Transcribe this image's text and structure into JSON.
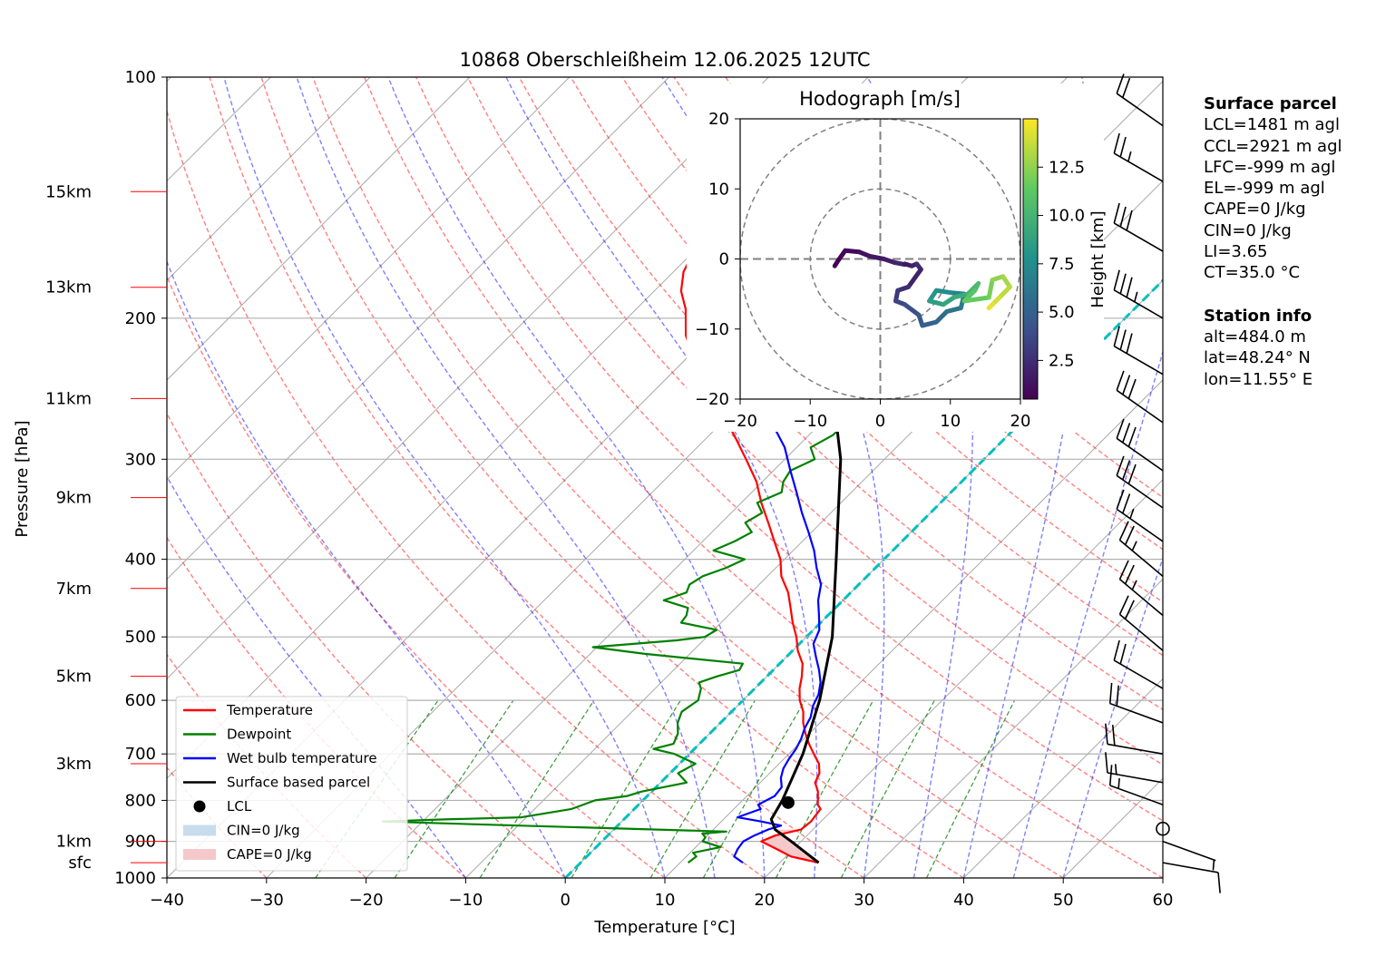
{
  "chart_data": {
    "type": "line",
    "title": "10868 Oberschleißheim 12.06.2025 12UTC",
    "xlabel": "Temperature [°C]",
    "ylabel": "Pressure [hPa]",
    "xlim": [
      -40,
      60
    ],
    "ylim": [
      1000,
      100
    ],
    "y_scale": "log",
    "grid": true,
    "x_ticks": [
      "−40",
      "−30",
      "−20",
      "−10",
      "0",
      "10",
      "20",
      "30",
      "40",
      "50",
      "60"
    ],
    "y_ticks": [
      {
        "p": 1000,
        "label": "1000"
      },
      {
        "p": 900,
        "label": "900"
      },
      {
        "p": 800,
        "label": "800"
      },
      {
        "p": 700,
        "label": "700"
      },
      {
        "p": 600,
        "label": "600"
      },
      {
        "p": 500,
        "label": "500"
      },
      {
        "p": 400,
        "label": "400"
      },
      {
        "p": 300,
        "label": "300"
      },
      {
        "p": 200,
        "label": "200"
      },
      {
        "p": 100,
        "label": "100"
      }
    ],
    "height_labels": [
      {
        "p": 957,
        "label": "sfc"
      },
      {
        "p": 900,
        "label": "1km"
      },
      {
        "p": 720,
        "label": "3km"
      },
      {
        "p": 560,
        "label": "5km"
      },
      {
        "p": 435,
        "label": "7km"
      },
      {
        "p": 335,
        "label": "9km"
      },
      {
        "p": 252,
        "label": "11km"
      },
      {
        "p": 183,
        "label": "13km"
      },
      {
        "p": 139,
        "label": "15km"
      }
    ],
    "legend_position": "lower-left",
    "legend": [
      {
        "label": "Temperature",
        "color": "#ff0000",
        "kind": "line"
      },
      {
        "label": "Dewpoint",
        "color": "#008000",
        "kind": "line"
      },
      {
        "label": "Wet bulb temperature",
        "color": "#0000ff",
        "kind": "line"
      },
      {
        "label": "Surface based parcel",
        "color": "#000000",
        "kind": "line"
      },
      {
        "label": "LCL",
        "color": "#000000",
        "kind": "dot"
      },
      {
        "label": "CIN=0 J/kg",
        "color": "#c8dced",
        "kind": "patch"
      },
      {
        "label": "CAPE=0 J/kg",
        "color": "#f5c9c9",
        "kind": "patch"
      }
    ],
    "series": [
      {
        "name": "Temperature",
        "color": "#ff0000",
        "points": [
          [
            957,
            23.9
          ],
          [
            940,
            20.5
          ],
          [
            920,
            18.3
          ],
          [
            900,
            16.0
          ],
          [
            885,
            16.8
          ],
          [
            870,
            18.8
          ],
          [
            850,
            19.0
          ],
          [
            820,
            18.7
          ],
          [
            810,
            18.0
          ],
          [
            780,
            16.7
          ],
          [
            760,
            15.5
          ],
          [
            740,
            15.0
          ],
          [
            720,
            14.0
          ],
          [
            700,
            12.5
          ],
          [
            680,
            11.0
          ],
          [
            660,
            9.6
          ],
          [
            640,
            8.3
          ],
          [
            620,
            7.2
          ],
          [
            600,
            5.7
          ],
          [
            580,
            4.5
          ],
          [
            560,
            3.5
          ],
          [
            540,
            2.3
          ],
          [
            520,
            0.5
          ],
          [
            500,
            -1.0
          ],
          [
            480,
            -2.8
          ],
          [
            460,
            -4.5
          ],
          [
            440,
            -6.3
          ],
          [
            420,
            -8.6
          ],
          [
            400,
            -10.4
          ],
          [
            380,
            -12.8
          ],
          [
            360,
            -15.3
          ],
          [
            340,
            -18.0
          ],
          [
            320,
            -20.6
          ],
          [
            300,
            -23.9
          ],
          [
            280,
            -27.5
          ],
          [
            260,
            -31.5
          ],
          [
            250,
            -34.0
          ],
          [
            230,
            -38.2
          ],
          [
            210,
            -42.4
          ],
          [
            195,
            -45.0
          ],
          [
            185,
            -47.3
          ],
          [
            175,
            -49.0
          ],
          [
            165,
            -50.0
          ],
          [
            155,
            -49.4
          ],
          [
            150,
            -49.2
          ],
          [
            145,
            -48.2
          ],
          [
            139,
            -45.3
          ]
        ]
      },
      {
        "name": "Dewpoint",
        "color": "#008000",
        "points": [
          [
            957,
            10.8
          ],
          [
            940,
            11.0
          ],
          [
            930,
            10.3
          ],
          [
            915,
            12.5
          ],
          [
            900,
            10.1
          ],
          [
            890,
            10.0
          ],
          [
            880,
            9.3
          ],
          [
            875,
            11.5
          ],
          [
            860,
            -10.0
          ],
          [
            850,
            -24.0
          ],
          [
            845,
            -18.0
          ],
          [
            840,
            -10.5
          ],
          [
            820,
            -6.3
          ],
          [
            800,
            -4.8
          ],
          [
            790,
            -2.0
          ],
          [
            780,
            -1.0
          ],
          [
            760,
            2.6
          ],
          [
            740,
            0.8
          ],
          [
            720,
            1.6
          ],
          [
            700,
            -1.5
          ],
          [
            690,
            -4.1
          ],
          [
            680,
            -2.6
          ],
          [
            660,
            -3.2
          ],
          [
            640,
            -4.3
          ],
          [
            620,
            -5.0
          ],
          [
            600,
            -4.5
          ],
          [
            580,
            -5.4
          ],
          [
            570,
            -6.2
          ],
          [
            560,
            -5.0
          ],
          [
            550,
            -3.4
          ],
          [
            540,
            -3.7
          ],
          [
            525,
            -14.5
          ],
          [
            515,
            -20.4
          ],
          [
            505,
            -12.7
          ],
          [
            500,
            -10.2
          ],
          [
            490,
            -9.7
          ],
          [
            480,
            -14.0
          ],
          [
            470,
            -14.2
          ],
          [
            460,
            -14.8
          ],
          [
            450,
            -18.0
          ],
          [
            440,
            -16.5
          ],
          [
            430,
            -17.0
          ],
          [
            420,
            -16.5
          ],
          [
            410,
            -15.0
          ],
          [
            400,
            -14.0
          ],
          [
            390,
            -18.0
          ],
          [
            380,
            -16.8
          ],
          [
            370,
            -16.0
          ],
          [
            360,
            -17.6
          ],
          [
            350,
            -16.9
          ],
          [
            340,
            -18.4
          ],
          [
            330,
            -17.0
          ],
          [
            320,
            -17.9
          ],
          [
            310,
            -18.3
          ],
          [
            300,
            -17.0
          ],
          [
            290,
            -18.6
          ],
          [
            280,
            -17.6
          ],
          [
            270,
            -17.5
          ],
          [
            260,
            -18.4
          ],
          [
            252,
            -17.1
          ],
          [
            245,
            -24.0
          ],
          [
            240,
            -21.2
          ],
          [
            230,
            -23.5
          ],
          [
            220,
            -22.0
          ],
          [
            210,
            -23.9
          ],
          [
            200,
            -20.5
          ],
          [
            195,
            -23.0
          ],
          [
            185,
            -20.0
          ],
          [
            180,
            -25.0
          ],
          [
            170,
            -25.5
          ],
          [
            160,
            -26.5
          ],
          [
            150,
            -25.0
          ],
          [
            145,
            -25.0
          ],
          [
            139,
            -24.0
          ]
        ]
      },
      {
        "name": "Wet bulb temperature",
        "color": "#0000ff",
        "points": [
          [
            957,
            16.3
          ],
          [
            940,
            14.8
          ],
          [
            920,
            14.4
          ],
          [
            900,
            14.2
          ],
          [
            885,
            14.7
          ],
          [
            870,
            15.5
          ],
          [
            860,
            16.4
          ],
          [
            850,
            14.0
          ],
          [
            840,
            11.2
          ],
          [
            820,
            12.7
          ],
          [
            810,
            12.0
          ],
          [
            790,
            12.8
          ],
          [
            770,
            12.6
          ],
          [
            750,
            11.6
          ],
          [
            730,
            10.9
          ],
          [
            710,
            10.5
          ],
          [
            690,
            10.2
          ],
          [
            670,
            9.7
          ],
          [
            650,
            9.0
          ],
          [
            630,
            8.5
          ],
          [
            610,
            7.6
          ],
          [
            590,
            7.0
          ],
          [
            570,
            6.0
          ],
          [
            550,
            4.6
          ],
          [
            530,
            3.0
          ],
          [
            510,
            1.4
          ],
          [
            490,
            0.6
          ],
          [
            470,
            -0.9
          ],
          [
            450,
            -2.5
          ],
          [
            430,
            -3.8
          ],
          [
            410,
            -5.9
          ],
          [
            390,
            -7.9
          ],
          [
            370,
            -10.3
          ],
          [
            350,
            -12.9
          ],
          [
            330,
            -15.5
          ],
          [
            310,
            -18.3
          ],
          [
            290,
            -21.2
          ],
          [
            270,
            -25.0
          ],
          [
            255,
            -27.9
          ],
          [
            245,
            -29.0
          ],
          [
            230,
            -30.8
          ],
          [
            210,
            -33.2
          ],
          [
            200,
            -34.5
          ],
          [
            190,
            -35.0
          ],
          [
            180,
            -34.8
          ],
          [
            170,
            -33.0
          ],
          [
            160,
            -32.5
          ],
          [
            150,
            -32.5
          ],
          [
            145,
            -30.8
          ],
          [
            139,
            -28.4
          ]
        ]
      },
      {
        "name": "Surface based parcel",
        "color": "#000000",
        "points": [
          [
            957,
            23.9
          ],
          [
            900,
            19.0
          ],
          [
            870,
            16.2
          ],
          [
            845,
            14.8
          ],
          [
            800,
            14.0
          ],
          [
            700,
            11.4
          ],
          [
            600,
            7.7
          ],
          [
            500,
            2.6
          ],
          [
            400,
            -4.8
          ],
          [
            300,
            -14.4
          ],
          [
            250,
            -21.5
          ],
          [
            200,
            -29.4
          ],
          [
            150,
            -38.8
          ],
          [
            139,
            -40.7
          ]
        ]
      }
    ],
    "dry_adiabats_theta_C": [
      -30,
      -20,
      -10,
      0,
      10,
      20,
      30,
      40,
      50,
      60,
      70,
      80,
      90,
      100,
      110,
      120,
      130
    ],
    "moist_adiabats_C": [
      -10,
      0,
      10,
      15,
      20,
      25,
      30,
      35,
      40,
      45,
      50
    ],
    "mixing_ratio_lines_gkg": [
      0.5,
      1,
      2,
      4,
      7,
      10,
      16,
      24,
      40
    ],
    "lcl": {
      "p": 805,
      "t": 14.8
    },
    "freezing_level_line": {
      "p1": 1000,
      "t1": 0,
      "note": "cyan dashed isotherm of 0 °C"
    },
    "inset": {
      "title": "Hodograph [m/s]",
      "xlim": [
        -20,
        20
      ],
      "ylim": [
        -20,
        20
      ],
      "x_ticks": [
        "−20",
        "−10",
        "0",
        "10",
        "20"
      ],
      "y_ticks": [
        "−20",
        "−10",
        "0",
        "10",
        "20"
      ],
      "rings": [
        10,
        20
      ],
      "colorbar_label": "Height [km]",
      "colorbar_ticks": [
        "2.5",
        "5.0",
        "7.5",
        "10.0",
        "12.5"
      ],
      "colorbar_range": [
        0.5,
        15
      ],
      "trace": [
        [
          0.5,
          3.5,
          -0.7
        ],
        [
          1,
          4.5,
          -1.0
        ],
        [
          1.5,
          5.2,
          -0.7
        ],
        [
          2,
          5.8,
          -1.5
        ],
        [
          2.5,
          4.0,
          -4.0
        ],
        [
          3,
          2.5,
          -4.5
        ],
        [
          3.5,
          2.2,
          -6.0
        ],
        [
          4,
          3.5,
          -6.5
        ],
        [
          4.5,
          5.5,
          -8.0
        ],
        [
          5,
          6.0,
          -9.5
        ],
        [
          5.5,
          8.0,
          -9.0
        ],
        [
          6,
          9.5,
          -7.5
        ],
        [
          6.5,
          11.5,
          -7.0
        ],
        [
          7,
          12.0,
          -5.0
        ],
        [
          7.5,
          10.0,
          -4.8
        ],
        [
          8,
          8.0,
          -4.5
        ],
        [
          8.5,
          7.0,
          -6.0
        ],
        [
          9,
          9.0,
          -6.5
        ],
        [
          9.5,
          10.5,
          -5.5
        ],
        [
          10,
          12.5,
          -5.0
        ],
        [
          10.5,
          14.0,
          -3.5
        ],
        [
          11,
          13.5,
          -4.5
        ],
        [
          11.5,
          12.0,
          -6.0
        ],
        [
          12,
          15.5,
          -5.5
        ],
        [
          12.5,
          16.0,
          -3.0
        ],
        [
          13,
          17.5,
          -2.5
        ],
        [
          13.5,
          18.5,
          -4.0
        ],
        [
          14,
          17.0,
          -5.5
        ],
        [
          14.5,
          16.0,
          -6.5
        ],
        [
          15,
          15.5,
          -7.0
        ]
      ],
      "trace_low": [
        [
          0.5,
          -6.5,
          -1.0
        ],
        [
          1,
          -6.0,
          -0.2
        ],
        [
          1.5,
          -5.0,
          1.2
        ],
        [
          2,
          -3.0,
          1.0
        ],
        [
          2.5,
          -1.5,
          0.4
        ],
        [
          3,
          0.5,
          0.0
        ],
        [
          3.5,
          2.0,
          -0.5
        ],
        [
          4,
          3.5,
          -0.8
        ]
      ]
    },
    "wind_barbs": [
      {
        "p": 957,
        "dir": 100,
        "kt": 10
      },
      {
        "p": 900,
        "dir": 110,
        "kt": 8
      },
      {
        "p": 868,
        "calm": true
      },
      {
        "p": 810,
        "dir": 290,
        "kt": 15
      },
      {
        "p": 760,
        "dir": 280,
        "kt": 15
      },
      {
        "p": 700,
        "dir": 280,
        "kt": 20
      },
      {
        "p": 640,
        "dir": 290,
        "kt": 20
      },
      {
        "p": 580,
        "dir": 300,
        "kt": 20
      },
      {
        "p": 520,
        "dir": 310,
        "kt": 20
      },
      {
        "p": 470,
        "dir": 310,
        "kt": 25
      },
      {
        "p": 420,
        "dir": 310,
        "kt": 25
      },
      {
        "p": 380,
        "dir": 305,
        "kt": 25
      },
      {
        "p": 345,
        "dir": 305,
        "kt": 30
      },
      {
        "p": 310,
        "dir": 305,
        "kt": 30
      },
      {
        "p": 270,
        "dir": 305,
        "kt": 30
      },
      {
        "p": 235,
        "dir": 300,
        "kt": 30
      },
      {
        "p": 200,
        "dir": 300,
        "kt": 35
      },
      {
        "p": 165,
        "dir": 300,
        "kt": 30
      },
      {
        "p": 135,
        "dir": 300,
        "kt": 25
      },
      {
        "p": 115,
        "dir": 305,
        "kt": 20
      }
    ]
  },
  "info_panel": {
    "parcel_heading": "Surface parcel",
    "parcel_lines": [
      "LCL=1481 m agl",
      "CCL=2921 m agl",
      "LFC=-999 m agl",
      "EL=-999 m agl",
      "CAPE=0 J/kg",
      "CIN=0 J/kg",
      "LI=3.65",
      "CT=35.0 °C"
    ],
    "station_heading": "Station info",
    "station_lines": [
      "alt=484.0 m",
      "lat=48.24° N",
      "lon=11.55° E"
    ]
  }
}
